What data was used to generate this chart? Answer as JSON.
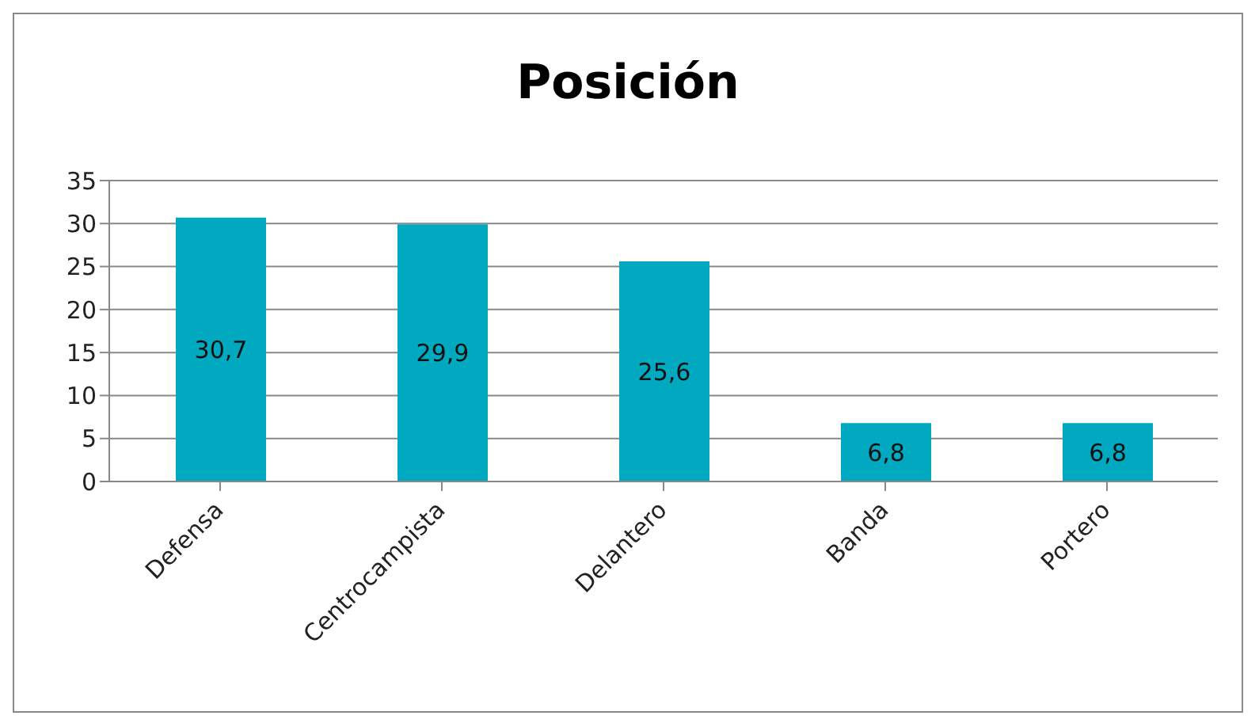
{
  "chart_data": {
    "type": "bar",
    "title": "Posición",
    "categories": [
      "Defensa",
      "Centrocampista",
      "Delantero",
      "Banda",
      "Portero"
    ],
    "values": [
      30.7,
      29.9,
      25.6,
      6.8,
      6.8
    ],
    "value_labels": [
      "30,7",
      "29,9",
      "25,6",
      "6,8",
      "6,8"
    ],
    "color": "#00a8c0",
    "ylim": [
      0,
      35
    ],
    "yticks": [
      0,
      5,
      10,
      15,
      20,
      25,
      30,
      35
    ],
    "grid": "y"
  }
}
